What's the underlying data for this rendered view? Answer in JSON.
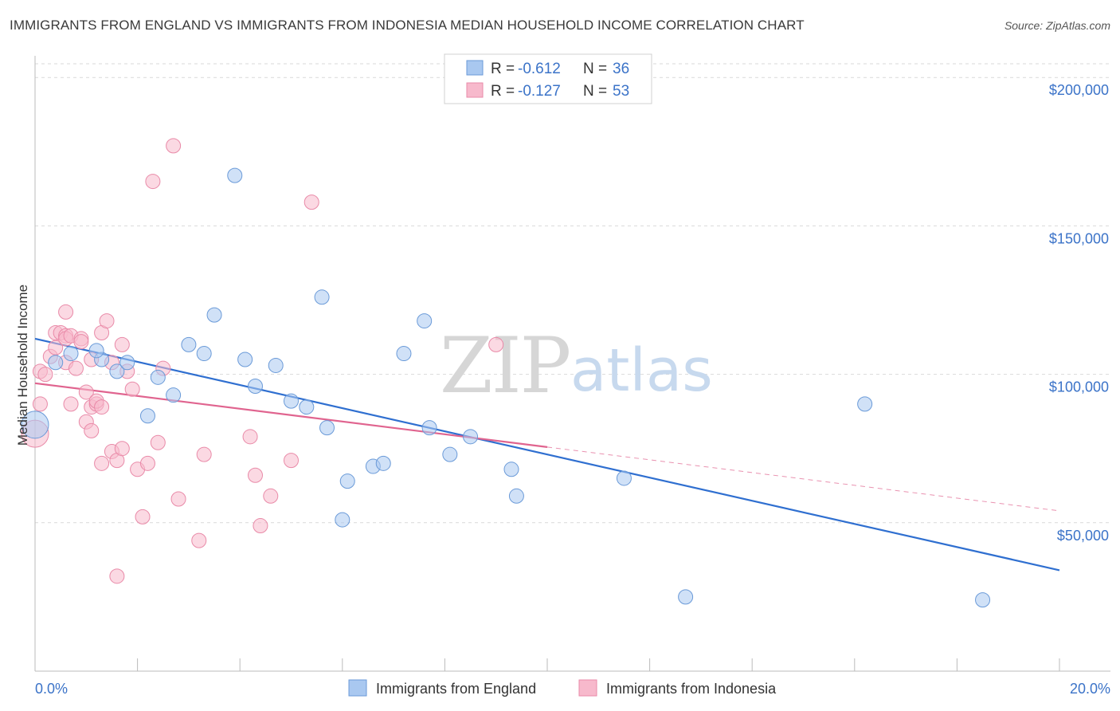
{
  "title": "IMMIGRANTS FROM ENGLAND VS IMMIGRANTS FROM INDONESIA MEDIAN HOUSEHOLD INCOME CORRELATION CHART",
  "source": "Source: ZipAtlas.com",
  "watermark": {
    "zip": "ZIP",
    "atlas": "atlas"
  },
  "legend_top": [
    {
      "r_label": "R =",
      "r_value": "-0.612",
      "n_label": "N =",
      "n_value": "36",
      "color": "#a9c8f0",
      "stroke": "#6a9ad8"
    },
    {
      "r_label": "R =",
      "r_value": "-0.127",
      "n_label": "N =",
      "n_value": "53",
      "color": "#f7b9cc",
      "stroke": "#e98aa8"
    }
  ],
  "chart_data": {
    "type": "scatter",
    "title": "IMMIGRANTS FROM ENGLAND VS IMMIGRANTS FROM INDONESIA MEDIAN HOUSEHOLD INCOME CORRELATION CHART",
    "xlabel": "",
    "ylabel": "Median Household Income",
    "xlim": [
      0,
      20
    ],
    "ylim": [
      0,
      210000
    ],
    "x_tick_labels": [
      "0.0%",
      "20.0%"
    ],
    "y_ticks": [
      50000,
      100000,
      150000,
      200000
    ],
    "y_tick_labels": [
      "$50,000",
      "$100,000",
      "$150,000",
      "$200,000"
    ],
    "series": [
      {
        "name": "Immigrants from England",
        "color": "#a9c8f0",
        "stroke": "#6a9ad8",
        "line_color": "#2f6fd0",
        "trend": {
          "x0": 0,
          "y0": 112000,
          "x1": 20,
          "y1": 34000
        },
        "points": [
          [
            0.0,
            83000,
            "big"
          ],
          [
            0.4,
            104000
          ],
          [
            0.7,
            107000
          ],
          [
            1.3,
            105000
          ],
          [
            1.6,
            101000
          ],
          [
            1.8,
            104000
          ],
          [
            2.4,
            99000
          ],
          [
            2.2,
            86000
          ],
          [
            2.7,
            93000
          ],
          [
            3.0,
            110000
          ],
          [
            3.3,
            107000
          ],
          [
            3.5,
            120000
          ],
          [
            3.9,
            167000
          ],
          [
            4.1,
            105000
          ],
          [
            4.3,
            96000
          ],
          [
            4.7,
            103000
          ],
          [
            5.0,
            91000
          ],
          [
            5.3,
            89000
          ],
          [
            5.6,
            126000
          ],
          [
            5.7,
            82000
          ],
          [
            6.0,
            51000
          ],
          [
            6.1,
            64000
          ],
          [
            6.6,
            69000
          ],
          [
            6.8,
            70000
          ],
          [
            7.2,
            107000
          ],
          [
            7.7,
            82000
          ],
          [
            7.6,
            118000
          ],
          [
            8.1,
            73000
          ],
          [
            8.5,
            79000
          ],
          [
            9.3,
            68000
          ],
          [
            9.4,
            59000
          ],
          [
            11.5,
            65000
          ],
          [
            12.7,
            25000
          ],
          [
            16.2,
            90000
          ],
          [
            18.5,
            24000
          ],
          [
            1.2,
            108000
          ]
        ]
      },
      {
        "name": "Immigrants from Indonesia",
        "color": "#f7b9cc",
        "stroke": "#e98aa8",
        "line_color": "#e0648f",
        "trend": {
          "x0": 0,
          "y0": 97000,
          "x1": 10,
          "y1": 75500
        },
        "trend_ext": {
          "x0": 10,
          "y0": 75500,
          "x1": 20,
          "y1": 54000
        },
        "points": [
          [
            0.0,
            80000,
            "big"
          ],
          [
            0.1,
            90000
          ],
          [
            0.1,
            101000
          ],
          [
            0.2,
            100000
          ],
          [
            0.3,
            106000
          ],
          [
            0.4,
            114000
          ],
          [
            0.4,
            109000
          ],
          [
            0.5,
            114000
          ],
          [
            0.6,
            104000
          ],
          [
            0.6,
            113000
          ],
          [
            0.6,
            121000
          ],
          [
            0.6,
            112000
          ],
          [
            0.7,
            90000
          ],
          [
            0.7,
            113000
          ],
          [
            0.8,
            102000
          ],
          [
            0.9,
            112000
          ],
          [
            0.9,
            111000
          ],
          [
            1.0,
            84000
          ],
          [
            1.0,
            94000
          ],
          [
            1.1,
            105000
          ],
          [
            1.1,
            81000
          ],
          [
            1.1,
            89000
          ],
          [
            1.2,
            90000
          ],
          [
            1.2,
            91000
          ],
          [
            1.3,
            89000
          ],
          [
            1.3,
            114000
          ],
          [
            1.3,
            70000
          ],
          [
            1.4,
            118000
          ],
          [
            1.5,
            104000
          ],
          [
            1.5,
            74000
          ],
          [
            1.6,
            71000
          ],
          [
            1.6,
            32000
          ],
          [
            1.7,
            75000
          ],
          [
            1.7,
            110000
          ],
          [
            1.8,
            101000
          ],
          [
            1.9,
            95000
          ],
          [
            2.0,
            68000
          ],
          [
            2.1,
            52000
          ],
          [
            2.2,
            70000
          ],
          [
            2.3,
            165000
          ],
          [
            2.4,
            77000
          ],
          [
            2.5,
            102000
          ],
          [
            2.7,
            177000
          ],
          [
            2.8,
            58000
          ],
          [
            3.2,
            44000
          ],
          [
            3.3,
            73000
          ],
          [
            4.2,
            79000
          ],
          [
            4.3,
            66000
          ],
          [
            4.4,
            49000
          ],
          [
            4.6,
            59000
          ],
          [
            5.0,
            71000
          ],
          [
            5.4,
            158000
          ],
          [
            9.0,
            110000
          ]
        ]
      }
    ]
  }
}
